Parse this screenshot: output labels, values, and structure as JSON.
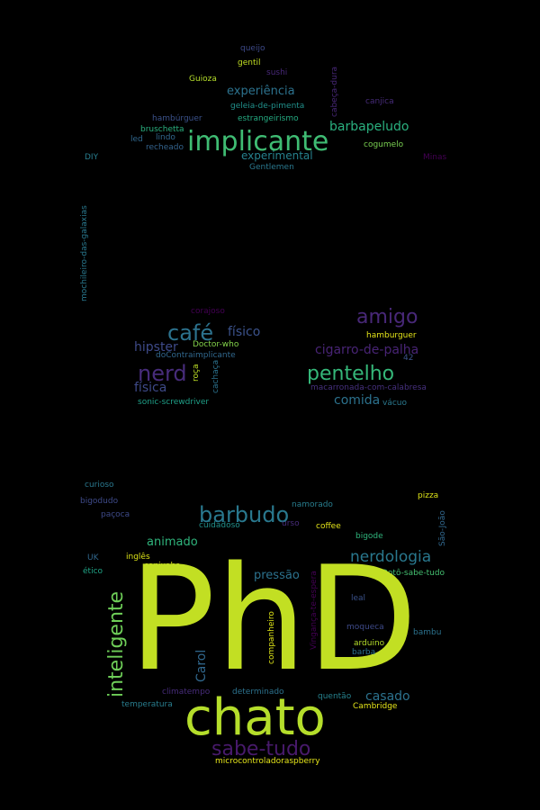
{
  "palette": {
    "background": "#000000",
    "lime": "#c2df23",
    "yellow": "#e4e419",
    "green": "#2fb47c",
    "teal": "#29788e",
    "purple": "#482878",
    "violet": "#440154"
  },
  "words": {
    "queijo": "queijo",
    "gentil": "gentil",
    "sushi": "sushi",
    "guioza": "Guioza",
    "experiencia": "experiência",
    "cabeca_dura": "cabeça-dura",
    "canjica": "canjica",
    "geleia": "geleia-de-pimenta",
    "hamburguer_acc": "hambúrguer",
    "estrangeirismo": "estrangeirismo",
    "bruschetta": "bruschetta",
    "led": "led",
    "lindo": "lindo",
    "recheado": "recheado",
    "implicante": "implicante",
    "barbapeludo": "barbapeludo",
    "cogumelo": "cogumelo",
    "experimental": "experimental",
    "diy": "DIY",
    "minas": "Minas",
    "gentlemen": "Gentlemen",
    "mochileiro": "mochileiro-das-galaxias",
    "corajoso": "corajoso",
    "amigo": "amigo",
    "cafe": "café",
    "fisico": "físico",
    "hipster": "hipster",
    "doctor_who": "Doctor-who",
    "cigarro": "cigarro-de-palha",
    "hamburguer": "hamburguer",
    "docontra": "doContraimplicante",
    "n42": "42",
    "nerd": "nerd",
    "roca": "roça",
    "cachaca": "cachaça",
    "pentelho": "pentelho",
    "fisica": "física",
    "macarronada": "macarronada-com-calabresa",
    "comida": "comida",
    "sonic": "sonic-screwdriver",
    "vacuo": "vácuo",
    "curioso": "curioso",
    "pizza": "pizza",
    "bigodudo": "bigodudo",
    "namorado": "namorado",
    "barbudo": "barbudo",
    "sao_joao": "São-João",
    "pacoca": "paçoca",
    "cuidadoso": "cuidadoso",
    "urso": "urso",
    "coffee": "coffee",
    "bigode": "bigode",
    "animado": "animado",
    "uk": "UK",
    "ingles": "inglês",
    "nerdologia": "nerdologia",
    "capixaba": "capixaba",
    "etico": "ético",
    "doto": "Dotô-sabe-tudo",
    "pressao": "pressão",
    "inteligente": "inteligente",
    "vinganca": "Vingança-te-espera",
    "leal": "leal",
    "phd": "PhD",
    "moqueca": "moqueca",
    "bambu": "bambu",
    "carol": "Carol",
    "companheiro": "companheiro",
    "arduino": "arduino",
    "barba": "barba",
    "climatempo": "climatempo",
    "determinado": "determinado",
    "casado": "casado",
    "temperatura": "temperatura",
    "quentao": "quentão",
    "cambridge": "Cambridge",
    "chato": "chato",
    "sabe_tudo": "sabe-tudo",
    "microcontrolador": "microcontroladoraspberry"
  }
}
